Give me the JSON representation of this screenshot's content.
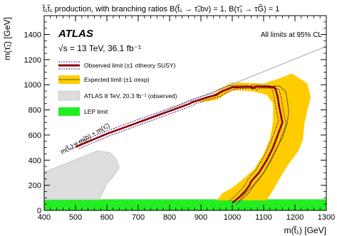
{
  "chart_data": {
    "type": "line",
    "title": "t̃₁t̃₁ production, with branching ratios B(t̃₁ → τ̃₁bν) = 1, B(τ̃₁ → τG̃) = 1",
    "xlabel": "m(t̃₁) [GeV]",
    "ylabel": "m(τ̃₁) [GeV]",
    "xlim": [
      400,
      1300
    ],
    "ylim": [
      0,
      1550
    ],
    "x_ticks": [
      400,
      500,
      600,
      700,
      800,
      900,
      1000,
      1100,
      1200,
      1300
    ],
    "y_ticks": [
      0,
      200,
      400,
      600,
      800,
      1000,
      1200,
      1400
    ],
    "atlas_label": "ATLAS",
    "energy_label": "√s = 13 TeV, 36.1 fb⁻¹",
    "cl_label": "All limits at 95% CL",
    "diagonal_label": "m(t̃₁) < m(b) + m(τ̃₁)",
    "legend": [
      {
        "label": "Observed limit (±1 σtheory SUSY)",
        "color": "#8b0000"
      },
      {
        "label": "Expected limit (±1 σexp)",
        "color": "#ffcc00"
      },
      {
        "label": "ATLAS 8 TeV, 20.3 fb⁻¹ (observed)",
        "color": "#dddddd"
      },
      {
        "label": "LEP limit",
        "color": "#22ee22"
      }
    ],
    "series": [
      {
        "name": "Observed limit",
        "x": [
          500,
          600,
          700,
          800,
          865,
          870,
          920,
          950,
          965,
          1000,
          1060,
          1065,
          1075,
          1110,
          1135,
          1140,
          1145,
          1150,
          1160,
          1145,
          1130,
          1110,
          1085,
          1060,
          1055,
          1040,
          1020,
          1000
        ],
        "y": [
          505,
          610,
          700,
          790,
          850,
          860,
          900,
          920,
          945,
          980,
          985,
          970,
          985,
          985,
          980,
          950,
          900,
          820,
          700,
          600,
          500,
          400,
          300,
          230,
          200,
          150,
          100,
          60
        ]
      },
      {
        "name": "Expected limit",
        "x": [
          500,
          600,
          700,
          800,
          865,
          920,
          960,
          1000,
          1080,
          1150,
          1170,
          1175,
          1180,
          1175,
          1160,
          1140,
          1120,
          1100,
          1080,
          1060,
          1040,
          1020
        ],
        "y": [
          505,
          610,
          700,
          790,
          850,
          895,
          940,
          985,
          985,
          990,
          950,
          880,
          790,
          690,
          580,
          490,
          390,
          300,
          230,
          180,
          130,
          70
        ]
      }
    ],
    "regions": {
      "expected_band": [
        [
          1000,
          1020
        ],
        [
          1100,
          1010
        ],
        [
          1150,
          1050
        ],
        [
          1190,
          1090
        ],
        [
          1240,
          1010
        ],
        [
          1250,
          900
        ],
        [
          1240,
          800
        ],
        [
          1230,
          690
        ],
        [
          1225,
          560
        ],
        [
          1210,
          470
        ],
        [
          1180,
          370
        ],
        [
          1155,
          270
        ],
        [
          1130,
          160
        ],
        [
          1110,
          80
        ],
        [
          950,
          80
        ],
        [
          970,
          140
        ],
        [
          1000,
          180
        ],
        [
          1030,
          240
        ],
        [
          1070,
          330
        ],
        [
          1100,
          450
        ],
        [
          1120,
          570
        ],
        [
          1130,
          700
        ],
        [
          1130,
          850
        ],
        [
          1110,
          920
        ],
        [
          1060,
          950
        ],
        [
          1000,
          955
        ],
        [
          950,
          880
        ],
        [
          900,
          860
        ],
        [
          890,
          870
        ],
        [
          940,
          920
        ],
        [
          970,
          980
        ]
      ],
      "atlas_8tev": [
        [
          400,
          305
        ],
        [
          500,
          405
        ],
        [
          570,
          475
        ],
        [
          610,
          460
        ],
        [
          630,
          410
        ],
        [
          640,
          340
        ],
        [
          620,
          270
        ],
        [
          600,
          210
        ],
        [
          590,
          160
        ],
        [
          575,
          85
        ],
        [
          400,
          85
        ]
      ],
      "lep_limit": [
        [
          400,
          0
        ],
        [
          1300,
          0
        ],
        [
          1300,
          88
        ],
        [
          400,
          88
        ]
      ],
      "kinematic_diagonal": [
        [
          480,
          485
        ],
        [
          1300,
          1305
        ]
      ]
    }
  }
}
